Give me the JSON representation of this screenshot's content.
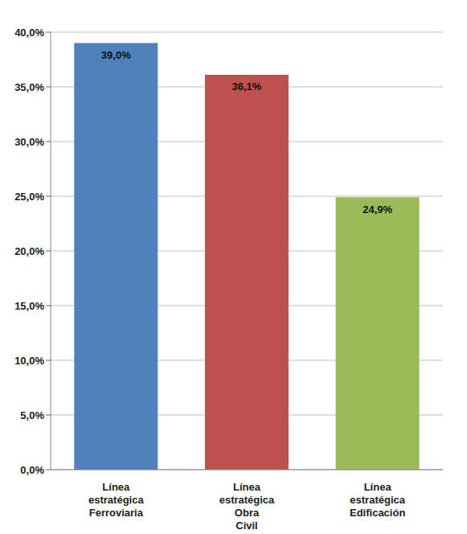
{
  "chart_data": {
    "type": "bar",
    "categories": [
      "Línea estratégica Ferroviaria",
      "Línea estratégica Obra Civil",
      "Línea estratégica Edificación"
    ],
    "values": [
      39.0,
      36.1,
      24.9
    ],
    "value_labels": [
      "39,0%",
      "36,1%",
      "24,9%"
    ],
    "colors": [
      "#4f81bd",
      "#c0504d",
      "#9bbb59"
    ],
    "ylim": [
      0,
      40
    ],
    "yticks": [
      {
        "value": 0,
        "label": "0,0%"
      },
      {
        "value": 5,
        "label": "5,0%"
      },
      {
        "value": 10,
        "label": "10,0%"
      },
      {
        "value": 15,
        "label": "15,0%"
      },
      {
        "value": 20,
        "label": "20,0%"
      },
      {
        "value": 25,
        "label": "25,0%"
      },
      {
        "value": 30,
        "label": "30,0%"
      },
      {
        "value": 35,
        "label": "35,0%"
      },
      {
        "value": 40,
        "label": "40,0%"
      }
    ],
    "grid": true,
    "data_labels": true
  }
}
